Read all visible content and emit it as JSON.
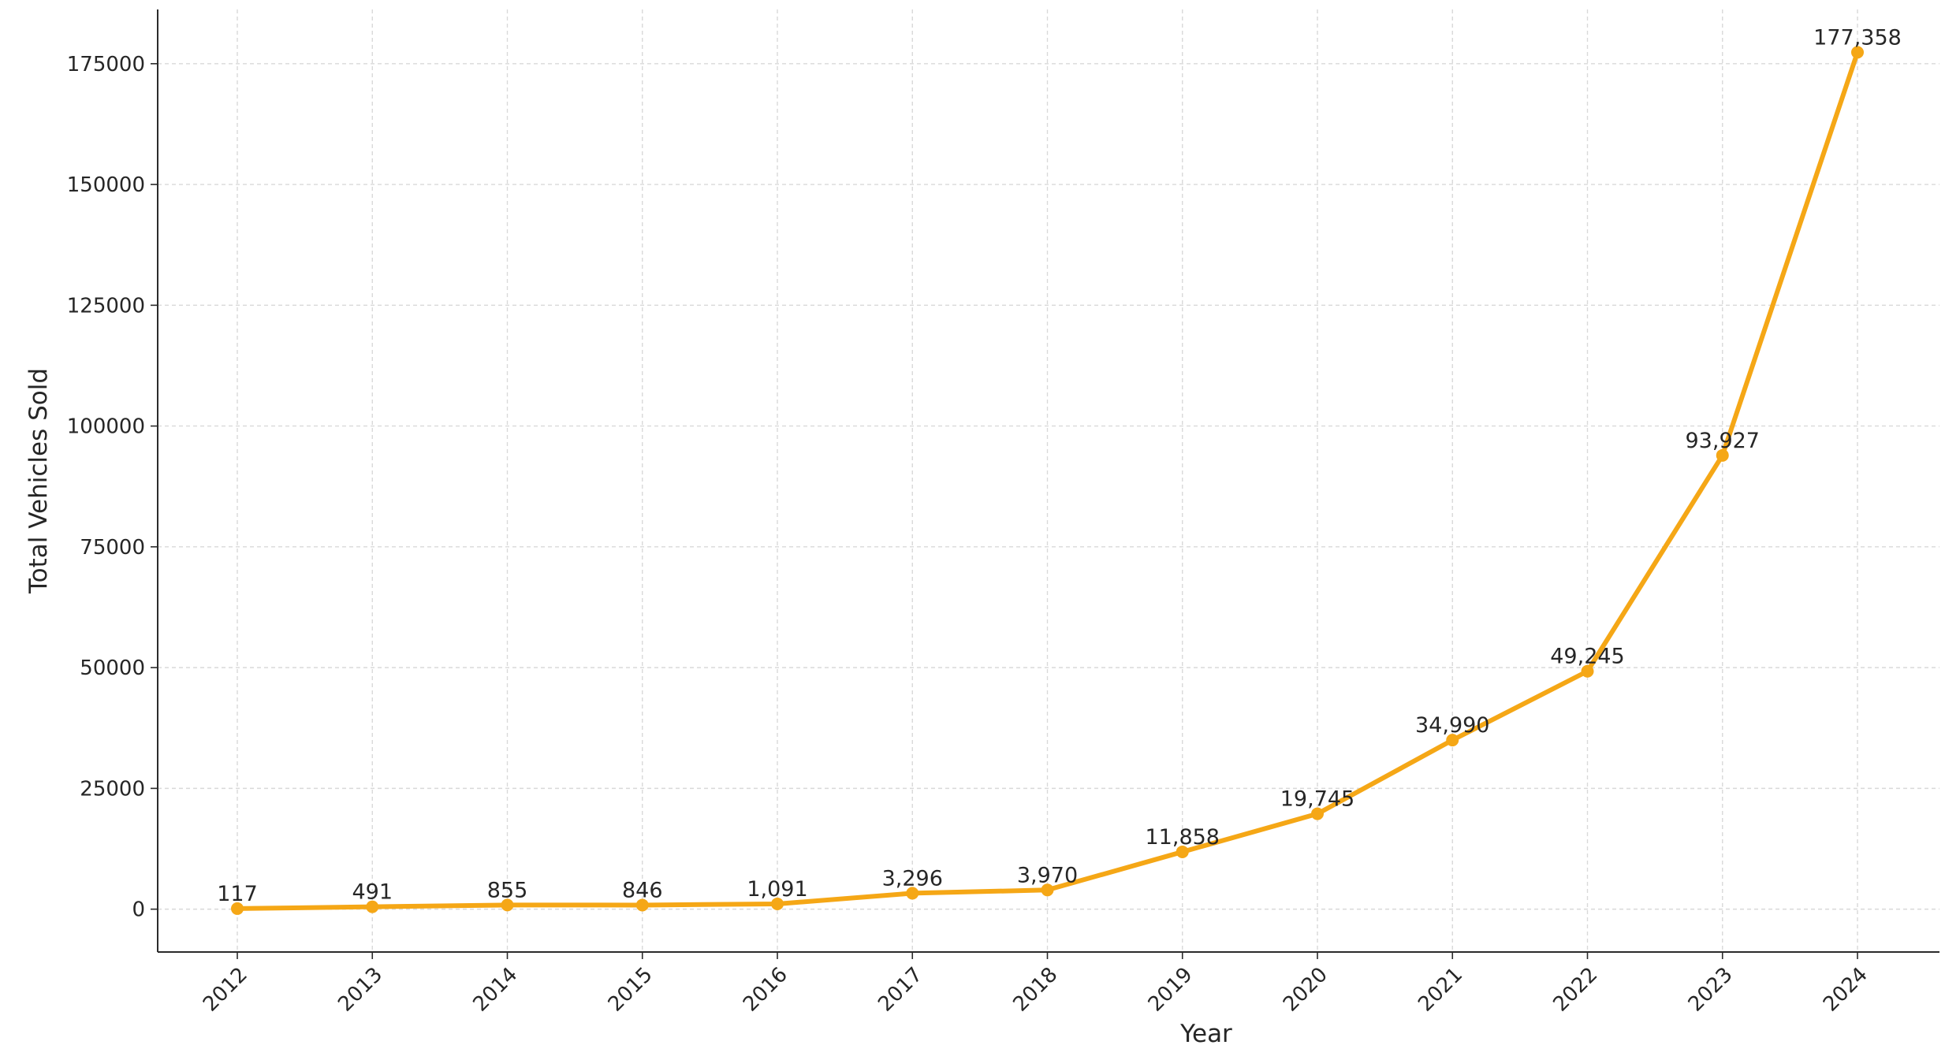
{
  "chart_data": {
    "type": "line",
    "title": "",
    "xlabel": "Year",
    "ylabel": "Total Vehicles Sold",
    "categories": [
      "2012",
      "2013",
      "2014",
      "2015",
      "2016",
      "2017",
      "2018",
      "2019",
      "2020",
      "2021",
      "2022",
      "2023",
      "2024"
    ],
    "series": [
      {
        "values": [
          117,
          491,
          855,
          846,
          1091,
          3296,
          3970,
          11858,
          19745,
          34990,
          49245,
          93927,
          177358
        ],
        "data_labels": [
          "117",
          "491",
          "855",
          "846",
          "1,091",
          "3,296",
          "3,970",
          "11,858",
          "19,745",
          "34,990",
          "49,245",
          "93,927",
          "177,358"
        ],
        "color": "#f5a716"
      }
    ],
    "yticks": [
      0,
      25000,
      50000,
      75000,
      100000,
      125000,
      150000,
      175000
    ],
    "ytick_labels": [
      "0",
      "25000",
      "50000",
      "75000",
      "100000",
      "125000",
      "150000",
      "175000"
    ],
    "ylim": [
      -8868,
      186226
    ],
    "grid": true,
    "legend": "none",
    "xtick_rotation": 45
  }
}
